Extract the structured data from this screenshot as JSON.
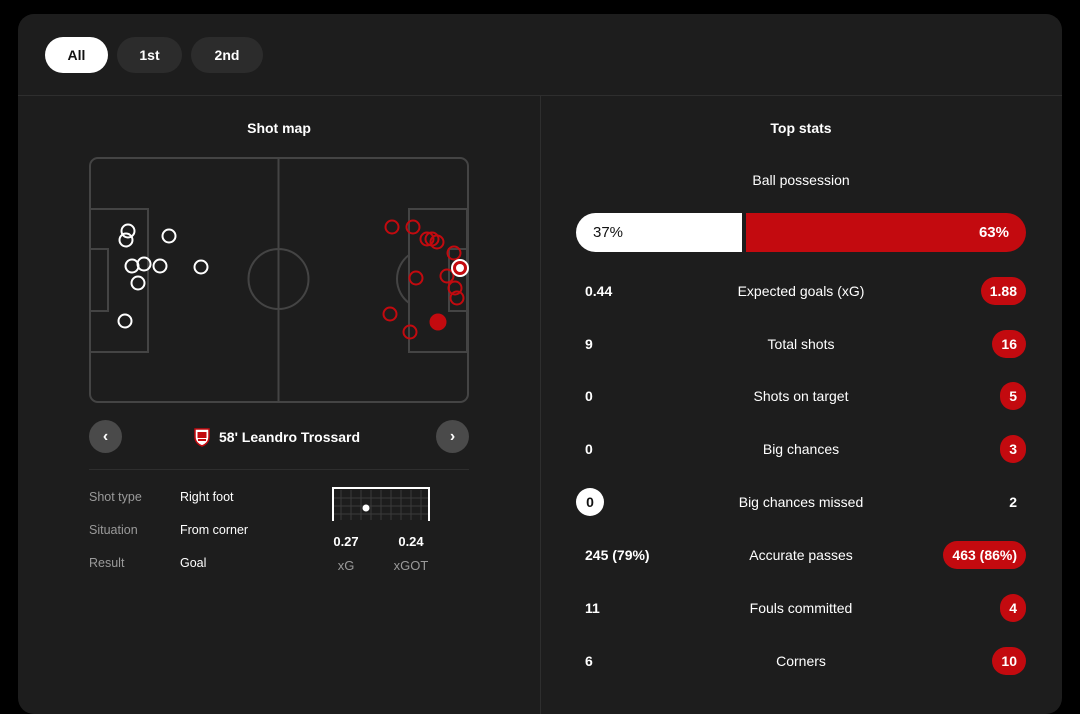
{
  "filters": [
    {
      "label": "All",
      "active": true
    },
    {
      "label": "1st",
      "active": false
    },
    {
      "label": "2nd",
      "active": false
    }
  ],
  "shot_map": {
    "title": "Shot map",
    "selected": {
      "minute": "58'",
      "player": "Leandro Trossard",
      "text": "58' Leandro Trossard"
    },
    "details": [
      {
        "label": "Shot type",
        "value": "Right foot"
      },
      {
        "label": "Situation",
        "value": "From corner"
      },
      {
        "label": "Result",
        "value": "Goal"
      }
    ],
    "xg": {
      "value": "0.27",
      "label": "xG"
    },
    "xgot": {
      "value": "0.24",
      "label": "xGOT"
    }
  },
  "top_stats": {
    "title": "Top stats",
    "possession": {
      "label": "Ball possession",
      "home": "37%",
      "away": "63%",
      "home_fraction": 0.37
    },
    "rows": [
      {
        "home": "0.44",
        "label": "Expected goals (xG)",
        "away": "1.88",
        "highlight": "away"
      },
      {
        "home": "9",
        "label": "Total shots",
        "away": "16",
        "highlight": "away"
      },
      {
        "home": "0",
        "label": "Shots on target",
        "away": "5",
        "highlight": "away"
      },
      {
        "home": "0",
        "label": "Big chances",
        "away": "3",
        "highlight": "away"
      },
      {
        "home": "0",
        "label": "Big chances missed",
        "away": "2",
        "highlight": "home"
      },
      {
        "home": "245 (79%)",
        "label": "Accurate passes",
        "away": "463 (86%)",
        "highlight": "away"
      },
      {
        "home": "11",
        "label": "Fouls committed",
        "away": "4",
        "highlight": "away"
      },
      {
        "home": "6",
        "label": "Corners",
        "away": "10",
        "highlight": "away"
      }
    ]
  },
  "colors": {
    "accent": "#c30a0f",
    "background": "#1d1d1d",
    "pill": "#2c2c2c"
  }
}
